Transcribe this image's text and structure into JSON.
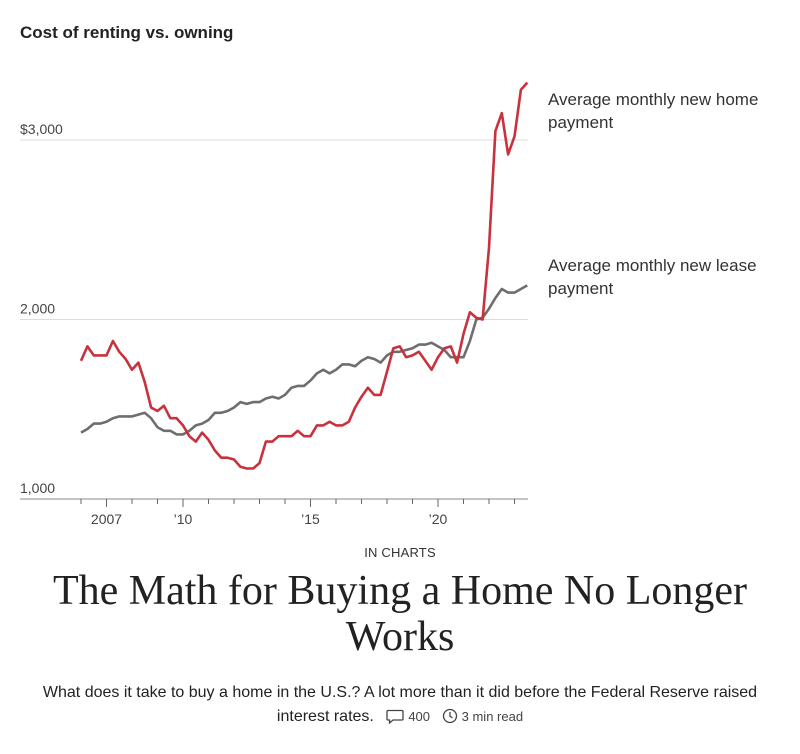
{
  "chart_data": {
    "type": "line",
    "title": "Cost of renting vs. owning",
    "ylim": [
      1000,
      3300
    ],
    "yticks": [
      {
        "value": 3000,
        "label": "$3,000"
      },
      {
        "value": 2000,
        "label": "2,000"
      },
      {
        "value": 1000,
        "label": "1,000"
      }
    ],
    "xlim": [
      2005.5,
      2024.5
    ],
    "xticks": [
      {
        "value": 2007,
        "label": "2007"
      },
      {
        "value": 2010,
        "label": "’10"
      },
      {
        "value": 2015,
        "label": "’15"
      },
      {
        "value": 2020,
        "label": "’20"
      }
    ],
    "grid": true,
    "series": [
      {
        "name": "Average monthly new home payment",
        "color": "#c8323c",
        "points": [
          [
            2006.0,
            1770
          ],
          [
            2006.25,
            1850
          ],
          [
            2006.5,
            1800
          ],
          [
            2006.75,
            1800
          ],
          [
            2007.0,
            1800
          ],
          [
            2007.25,
            1880
          ],
          [
            2007.5,
            1820
          ],
          [
            2007.75,
            1780
          ],
          [
            2008.0,
            1720
          ],
          [
            2008.25,
            1760
          ],
          [
            2008.5,
            1650
          ],
          [
            2008.75,
            1510
          ],
          [
            2009.0,
            1490
          ],
          [
            2009.25,
            1520
          ],
          [
            2009.5,
            1450
          ],
          [
            2009.75,
            1450
          ],
          [
            2010.0,
            1410
          ],
          [
            2010.25,
            1350
          ],
          [
            2010.5,
            1320
          ],
          [
            2010.75,
            1370
          ],
          [
            2011.0,
            1330
          ],
          [
            2011.25,
            1270
          ],
          [
            2011.5,
            1230
          ],
          [
            2011.75,
            1230
          ],
          [
            2012.0,
            1220
          ],
          [
            2012.25,
            1180
          ],
          [
            2012.5,
            1170
          ],
          [
            2012.75,
            1170
          ],
          [
            2013.0,
            1200
          ],
          [
            2013.25,
            1320
          ],
          [
            2013.5,
            1320
          ],
          [
            2013.75,
            1350
          ],
          [
            2014.0,
            1350
          ],
          [
            2014.25,
            1350
          ],
          [
            2014.5,
            1380
          ],
          [
            2014.75,
            1350
          ],
          [
            2015.0,
            1350
          ],
          [
            2015.25,
            1410
          ],
          [
            2015.5,
            1410
          ],
          [
            2015.75,
            1430
          ],
          [
            2016.0,
            1410
          ],
          [
            2016.25,
            1410
          ],
          [
            2016.5,
            1430
          ],
          [
            2016.75,
            1510
          ],
          [
            2017.0,
            1570
          ],
          [
            2017.25,
            1620
          ],
          [
            2017.5,
            1580
          ],
          [
            2017.75,
            1580
          ],
          [
            2018.0,
            1710
          ],
          [
            2018.25,
            1840
          ],
          [
            2018.5,
            1850
          ],
          [
            2018.75,
            1790
          ],
          [
            2019.0,
            1800
          ],
          [
            2019.25,
            1820
          ],
          [
            2019.5,
            1770
          ],
          [
            2019.75,
            1720
          ],
          [
            2020.0,
            1790
          ],
          [
            2020.25,
            1840
          ],
          [
            2020.5,
            1850
          ],
          [
            2020.75,
            1760
          ],
          [
            2021.0,
            1920
          ],
          [
            2021.25,
            2040
          ],
          [
            2021.5,
            2010
          ],
          [
            2021.75,
            2000
          ],
          [
            2022.0,
            2400
          ],
          [
            2022.25,
            3050
          ],
          [
            2022.5,
            3150
          ],
          [
            2022.75,
            2920
          ],
          [
            2023.0,
            3020
          ],
          [
            2023.25,
            3280
          ],
          [
            2023.5,
            3320
          ]
        ]
      },
      {
        "name": "Average monthly new lease payment",
        "color": "#6e6e6e",
        "points": [
          [
            2006.0,
            1370
          ],
          [
            2006.25,
            1390
          ],
          [
            2006.5,
            1420
          ],
          [
            2006.75,
            1420
          ],
          [
            2007.0,
            1430
          ],
          [
            2007.25,
            1450
          ],
          [
            2007.5,
            1460
          ],
          [
            2007.75,
            1460
          ],
          [
            2008.0,
            1460
          ],
          [
            2008.25,
            1470
          ],
          [
            2008.5,
            1480
          ],
          [
            2008.75,
            1450
          ],
          [
            2009.0,
            1400
          ],
          [
            2009.25,
            1380
          ],
          [
            2009.5,
            1380
          ],
          [
            2009.75,
            1360
          ],
          [
            2010.0,
            1360
          ],
          [
            2010.25,
            1380
          ],
          [
            2010.5,
            1410
          ],
          [
            2010.75,
            1420
          ],
          [
            2011.0,
            1440
          ],
          [
            2011.25,
            1480
          ],
          [
            2011.5,
            1480
          ],
          [
            2011.75,
            1490
          ],
          [
            2012.0,
            1510
          ],
          [
            2012.25,
            1540
          ],
          [
            2012.5,
            1530
          ],
          [
            2012.75,
            1540
          ],
          [
            2013.0,
            1540
          ],
          [
            2013.25,
            1560
          ],
          [
            2013.5,
            1570
          ],
          [
            2013.75,
            1560
          ],
          [
            2014.0,
            1580
          ],
          [
            2014.25,
            1620
          ],
          [
            2014.5,
            1630
          ],
          [
            2014.75,
            1630
          ],
          [
            2015.0,
            1660
          ],
          [
            2015.25,
            1700
          ],
          [
            2015.5,
            1720
          ],
          [
            2015.75,
            1700
          ],
          [
            2016.0,
            1720
          ],
          [
            2016.25,
            1750
          ],
          [
            2016.5,
            1750
          ],
          [
            2016.75,
            1740
          ],
          [
            2017.0,
            1770
          ],
          [
            2017.25,
            1790
          ],
          [
            2017.5,
            1780
          ],
          [
            2017.75,
            1760
          ],
          [
            2018.0,
            1800
          ],
          [
            2018.25,
            1820
          ],
          [
            2018.5,
            1820
          ],
          [
            2018.75,
            1830
          ],
          [
            2019.0,
            1840
          ],
          [
            2019.25,
            1860
          ],
          [
            2019.5,
            1860
          ],
          [
            2019.75,
            1870
          ],
          [
            2020.0,
            1850
          ],
          [
            2020.25,
            1830
          ],
          [
            2020.5,
            1790
          ],
          [
            2020.75,
            1790
          ],
          [
            2021.0,
            1790
          ],
          [
            2021.25,
            1880
          ],
          [
            2021.5,
            2000
          ],
          [
            2021.75,
            2010
          ],
          [
            2022.0,
            2060
          ],
          [
            2022.25,
            2120
          ],
          [
            2022.5,
            2170
          ],
          [
            2022.75,
            2150
          ],
          [
            2023.0,
            2150
          ],
          [
            2023.25,
            2170
          ],
          [
            2023.5,
            2190
          ]
        ]
      }
    ]
  },
  "article": {
    "kicker": "IN CHARTS",
    "headline": "The Math for Buying a Home No Longer Works",
    "dek": "What does it take to buy a home in the U.S.? A lot more than it did before the Federal Reserve raised interest rates.",
    "comments_count": "400",
    "read_time": "3 min read",
    "comment_icon": "speech-bubble-icon",
    "clock_icon": "clock-icon"
  }
}
